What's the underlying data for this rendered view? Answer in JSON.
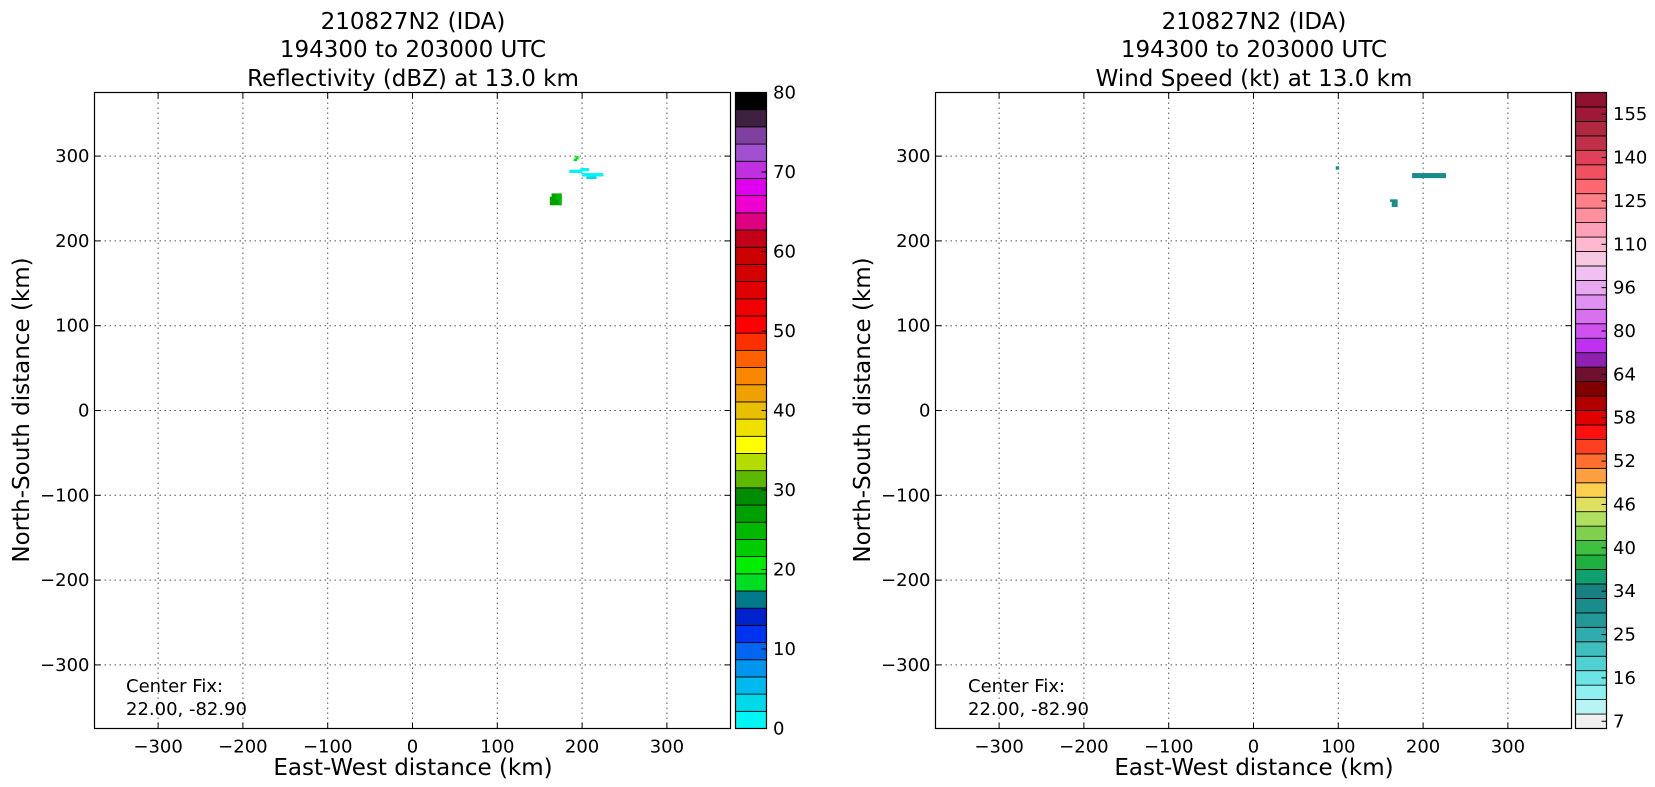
{
  "chart_data": [
    {
      "type": "heatmap",
      "title_lines": [
        "210827N2 (IDA)",
        "194300 to 203000 UTC",
        "Reflectivity (dBZ) at 13.0 km"
      ],
      "xlabel": "East-West distance (km)",
      "ylabel": "North-South distance (km)",
      "xlim": [
        -375,
        375
      ],
      "ylim": [
        -375,
        375
      ],
      "x_ticks": [
        -300,
        -200,
        -100,
        0,
        100,
        200,
        300
      ],
      "y_ticks": [
        -300,
        -200,
        -100,
        0,
        100,
        200,
        300
      ],
      "x_tick_labels": [
        "−300",
        "−200",
        "−100",
        "0",
        "100",
        "200",
        "300"
      ],
      "y_tick_labels": [
        "−300",
        "−200",
        "−100",
        "0",
        "100",
        "200",
        "300"
      ],
      "grid": true,
      "annotation": [
        "Center Fix:",
        "22.00, -82.90"
      ],
      "colorbar": {
        "labels": [
          "0",
          "10",
          "20",
          "30",
          "40",
          "50",
          "60",
          "70",
          "80"
        ],
        "label_values": [
          0,
          10,
          20,
          30,
          40,
          50,
          60,
          70,
          80
        ],
        "min": 0,
        "max": 80,
        "colors": [
          "#00f5f5",
          "#00d9ea",
          "#00b9ee",
          "#0096f0",
          "#0066f2",
          "#0033f0",
          "#0022cc",
          "#007a8a",
          "#00dd22",
          "#00ee00",
          "#00cc00",
          "#00b800",
          "#00a000",
          "#008c00",
          "#5db800",
          "#b4dc00",
          "#ffff00",
          "#f0e000",
          "#e8c000",
          "#f0a000",
          "#f88800",
          "#ff6000",
          "#ff3000",
          "#ff0000",
          "#f00000",
          "#e00000",
          "#d40000",
          "#cc0000",
          "#c40018",
          "#dd0080",
          "#f000d0",
          "#e000f0",
          "#c030e0",
          "#a050d0",
          "#8040a0",
          "#402040",
          "#000000"
        ]
      },
      "cells": [
        {
          "x": 192,
          "y": 296,
          "w": 4,
          "h": 4,
          "color": "#00ee00"
        },
        {
          "x": 190,
          "y": 294,
          "w": 4,
          "h": 3,
          "color": "#00dd22"
        },
        {
          "x": 185,
          "y": 280,
          "w": 15,
          "h": 4,
          "color": "#00f5f5"
        },
        {
          "x": 198,
          "y": 282,
          "w": 10,
          "h": 4,
          "color": "#00f5f5"
        },
        {
          "x": 200,
          "y": 276,
          "w": 25,
          "h": 4,
          "color": "#00f5f5"
        },
        {
          "x": 205,
          "y": 273,
          "w": 12,
          "h": 3,
          "color": "#00d9ea"
        },
        {
          "x": 164,
          "y": 251,
          "w": 12,
          "h": 5,
          "color": "#00a000"
        },
        {
          "x": 162,
          "y": 242,
          "w": 14,
          "h": 10,
          "color": "#00a000"
        },
        {
          "x": 169,
          "y": 248,
          "w": 6,
          "h": 8,
          "color": "#00b800"
        },
        {
          "x": 173,
          "y": 244,
          "w": 3,
          "h": 4,
          "color": "#00cc00"
        }
      ]
    },
    {
      "type": "heatmap",
      "title_lines": [
        "210827N2 (IDA)",
        "194300 to 203000 UTC",
        "Wind Speed (kt) at 13.0 km"
      ],
      "xlabel": "East-West distance (km)",
      "ylabel": "North-South distance (km)",
      "xlim": [
        -375,
        375
      ],
      "ylim": [
        -375,
        375
      ],
      "x_ticks": [
        -300,
        -200,
        -100,
        0,
        100,
        200,
        300
      ],
      "y_ticks": [
        -300,
        -200,
        -100,
        0,
        100,
        200,
        300
      ],
      "x_tick_labels": [
        "−300",
        "−200",
        "−100",
        "0",
        "100",
        "200",
        "300"
      ],
      "y_tick_labels": [
        "−300",
        "−200",
        "−100",
        "0",
        "100",
        "200",
        "300"
      ],
      "grid": true,
      "annotation": [
        "Center Fix:",
        "22.00, -82.90"
      ],
      "colorbar": {
        "labels": [
          "7",
          "16",
          "25",
          "34",
          "40",
          "46",
          "52",
          "58",
          "64",
          "80",
          "96",
          "110",
          "125",
          "140",
          "155"
        ],
        "label_positions": [
          0.5,
          3.5,
          6.5,
          9.5,
          12.5,
          15.5,
          18.5,
          21.5,
          24.5,
          27.5,
          30.5,
          33.5,
          36.5,
          39.5,
          42.5
        ],
        "min": 0,
        "max": 44,
        "colors": [
          "#f0f0f0",
          "#b8f4f4",
          "#90f0f0",
          "#6ce4e4",
          "#50d0d0",
          "#40bebe",
          "#30acac",
          "#229898",
          "#1a8c8c",
          "#188080",
          "#10a070",
          "#20b040",
          "#40c040",
          "#80d050",
          "#b0e060",
          "#e0e060",
          "#ffd050",
          "#ffa040",
          "#ff7030",
          "#ff4020",
          "#ff1010",
          "#e00000",
          "#b00000",
          "#800000",
          "#701030",
          "#9020b0",
          "#c030f0",
          "#d050f0",
          "#d870f0",
          "#e090f0",
          "#e8a8f0",
          "#f0c0f0",
          "#f8c8e0",
          "#ffb8d0",
          "#ffa0b8",
          "#ff90a0",
          "#ff8088",
          "#ff6870",
          "#f05060",
          "#e04058",
          "#c03048",
          "#b02840",
          "#a01838",
          "#901030"
        ]
      },
      "cells": [
        {
          "x": 97,
          "y": 284,
          "w": 4,
          "h": 4,
          "color": "#1a8c8c"
        },
        {
          "x": 187,
          "y": 274,
          "w": 40,
          "h": 6,
          "color": "#1a8c8c"
        },
        {
          "x": 163,
          "y": 240,
          "w": 7,
          "h": 9,
          "color": "#1a8c8c"
        },
        {
          "x": 161,
          "y": 246,
          "w": 3,
          "h": 3,
          "color": "#1a8c8c"
        }
      ]
    }
  ]
}
